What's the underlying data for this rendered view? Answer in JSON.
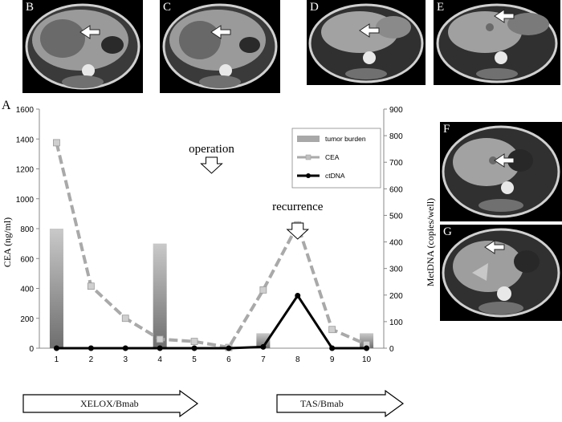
{
  "panels": [
    {
      "letter": "B",
      "lesion": "large"
    },
    {
      "letter": "C",
      "lesion": "large"
    },
    {
      "letter": "D",
      "lesion": "none"
    },
    {
      "letter": "E",
      "lesion": "small"
    },
    {
      "letter": "F",
      "lesion": "small"
    },
    {
      "letter": "G",
      "lesion": "none"
    }
  ],
  "chart_label": "A",
  "chart_data": {
    "type": "bar+line",
    "categories": [
      "1",
      "2",
      "3",
      "4",
      "5",
      "6",
      "7",
      "8",
      "9",
      "10"
    ],
    "series": [
      {
        "name": "tumor burden",
        "kind": "bar",
        "axis": "left",
        "values": [
          800,
          null,
          null,
          700,
          null,
          null,
          100,
          null,
          null,
          100
        ]
      },
      {
        "name": "CEA",
        "kind": "line",
        "axis": "left",
        "style": "dashed",
        "values": [
          1375,
          415,
          200,
          60,
          45,
          5,
          390,
          825,
          125,
          25
        ]
      },
      {
        "name": "ctDNA",
        "kind": "line",
        "axis": "right",
        "style": "solid",
        "values": [
          0,
          0,
          0,
          0,
          0,
          0,
          5,
          198,
          0,
          0
        ]
      }
    ],
    "ylabel": "CEA (ng/ml)",
    "y2label": "MetDNA (copies/well)",
    "ylim": [
      0,
      1600
    ],
    "y2lim": [
      0,
      900
    ],
    "yticks": [
      "0",
      "200",
      "400",
      "600",
      "800",
      "1000",
      "1200",
      "1400",
      "1600"
    ],
    "y2ticks": [
      "0",
      "100",
      "200",
      "300",
      "400",
      "500",
      "600",
      "700",
      "800",
      "900"
    ],
    "legend": [
      "tumor burden",
      "CEA",
      "ctDNA"
    ],
    "legend_position": "top-right",
    "annotations": [
      {
        "text": "operation",
        "at_category": "5"
      },
      {
        "text": "recurrence",
        "at_category": "7.5"
      }
    ],
    "colors": {
      "bar": "#a8a8a8",
      "cea": "#a9a9a9",
      "ctdna": "#000000"
    }
  },
  "therapies": [
    {
      "label": "XELOX/Bmab"
    },
    {
      "label": "TAS/Bmab"
    }
  ]
}
